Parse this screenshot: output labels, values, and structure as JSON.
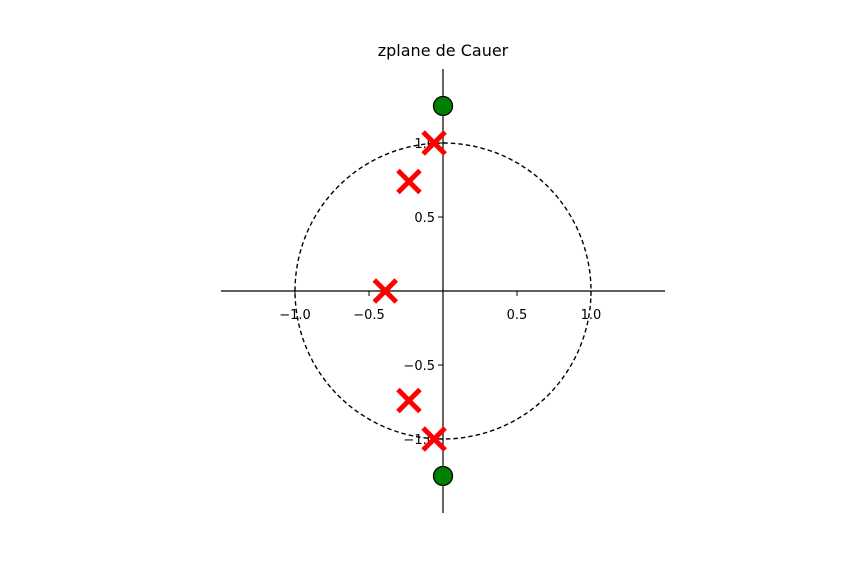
{
  "chart_data": {
    "type": "scatter",
    "title": "zplane de Cauer",
    "xlabel": "",
    "ylabel": "",
    "xlim": [
      -1.5,
      1.5
    ],
    "ylim": [
      -1.5,
      1.5
    ],
    "grid": false,
    "legend": "none",
    "unit_circle": {
      "radius": 1.0,
      "style": "dashed",
      "color": "#000000"
    },
    "x_ticks": [
      {
        "value": -1.0,
        "label": "−1.0"
      },
      {
        "value": -0.5,
        "label": "−0.5"
      },
      {
        "value": 0.5,
        "label": "0.5"
      },
      {
        "value": 1.0,
        "label": "1.0"
      }
    ],
    "y_ticks": [
      {
        "value": -1.0,
        "label": "−1.0"
      },
      {
        "value": -0.5,
        "label": "−0.5"
      },
      {
        "value": 0.5,
        "label": "0.5"
      },
      {
        "value": 1.0,
        "label": "1.0"
      }
    ],
    "series": [
      {
        "marker": "circle",
        "color": "#008000",
        "edge_color": "#000000",
        "points": [
          {
            "x": 0.0,
            "y": 1.25
          },
          {
            "x": 0.0,
            "y": -1.25
          }
        ]
      },
      {
        "marker": "x",
        "color": "#ff0000",
        "points": [
          {
            "x": -0.06,
            "y": 1.0
          },
          {
            "x": -0.23,
            "y": 0.74
          },
          {
            "x": -0.39,
            "y": 0.0
          },
          {
            "x": -0.23,
            "y": -0.74
          },
          {
            "x": -0.06,
            "y": -1.0
          }
        ]
      }
    ]
  }
}
